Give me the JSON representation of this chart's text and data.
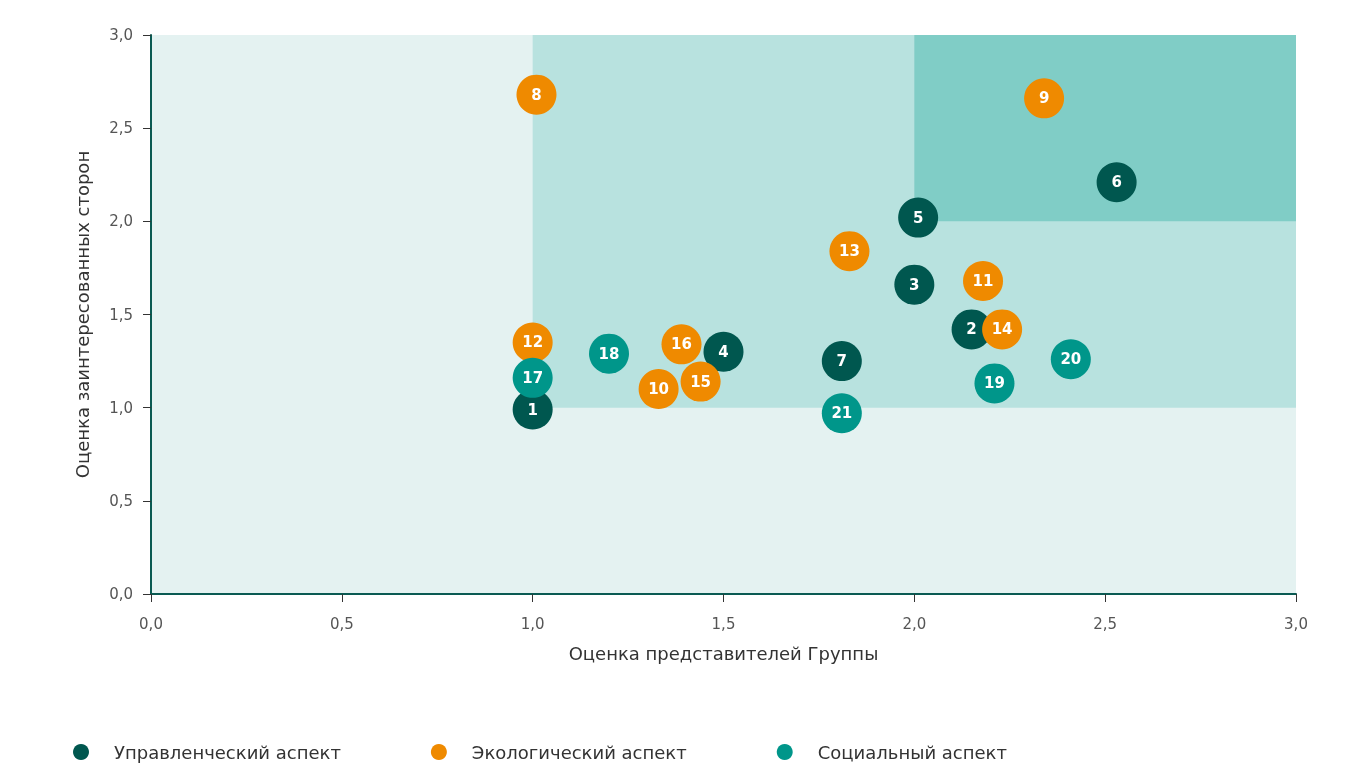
{
  "chart_data": {
    "type": "scatter",
    "xlabel": "Оценка представителей Группы",
    "ylabel": "Оценка заинтересованных сторон",
    "xlim": [
      0,
      3
    ],
    "ylim": [
      0,
      3
    ],
    "xticks": [
      {
        "value": 0,
        "label": "0,0"
      },
      {
        "value": 0.5,
        "label": "0,5"
      },
      {
        "value": 1,
        "label": "1,0"
      },
      {
        "value": 1.5,
        "label": "1,5"
      },
      {
        "value": 2,
        "label": "2,0"
      },
      {
        "value": 2.5,
        "label": "2,5"
      },
      {
        "value": 3,
        "label": "3,0"
      }
    ],
    "yticks": [
      {
        "value": 0,
        "label": "0,0"
      },
      {
        "value": 0.5,
        "label": "0,5"
      },
      {
        "value": 1,
        "label": "1,0"
      },
      {
        "value": 1.5,
        "label": "1,5"
      },
      {
        "value": 2,
        "label": "2,0"
      },
      {
        "value": 2.5,
        "label": "2,5"
      },
      {
        "value": 3,
        "label": "3,0"
      }
    ],
    "grid": false,
    "legend": "bottom left",
    "marker": "circle",
    "bands": [
      {
        "axis": "x",
        "from": 0,
        "to": 3,
        "color": "#e4f2f1"
      },
      {
        "axis": "x",
        "from": 1,
        "to": 3,
        "color": "#b8e2df"
      },
      {
        "axis": "x",
        "from": 2,
        "to": 3,
        "color": "#80cdc6"
      }
    ],
    "series": [
      {
        "name": "Управленческий аспект",
        "color": "#00574f",
        "x": [
          1.0,
          2.15,
          2.0,
          1.5,
          2.01,
          2.53,
          1.81
        ],
        "values": [
          0.99,
          1.42,
          1.66,
          1.3,
          2.02,
          2.21,
          1.25
        ]
      },
      {
        "name": "Экологический аспект",
        "color": "#ef8a00",
        "x": [
          1.01,
          2.34,
          1.33,
          2.18,
          1.0,
          1.83,
          2.23,
          1.44,
          1.39
        ],
        "values": [
          2.68,
          2.66,
          1.1,
          1.68,
          1.35,
          1.84,
          1.42,
          1.14,
          1.34
        ]
      },
      {
        "name": "Социальный аспект",
        "color": "#00968a",
        "x": [
          1.0,
          1.2,
          2.21,
          2.41,
          1.81
        ],
        "values": [
          1.16,
          1.29,
          1.13,
          1.26,
          0.97
        ]
      }
    ],
    "annotations": [
      {
        "text": "1",
        "x": 1.0,
        "y": 0.99
      },
      {
        "text": "2",
        "x": 2.15,
        "y": 1.42
      },
      {
        "text": "3",
        "x": 2.0,
        "y": 1.66
      },
      {
        "text": "4",
        "x": 1.5,
        "y": 1.3
      },
      {
        "text": "5",
        "x": 2.01,
        "y": 2.02
      },
      {
        "text": "6",
        "x": 2.53,
        "y": 2.21
      },
      {
        "text": "7",
        "x": 1.81,
        "y": 1.25
      },
      {
        "text": "8",
        "x": 1.01,
        "y": 2.68
      },
      {
        "text": "9",
        "x": 2.34,
        "y": 2.66
      },
      {
        "text": "10",
        "x": 1.33,
        "y": 1.1
      },
      {
        "text": "11",
        "x": 2.18,
        "y": 1.68
      },
      {
        "text": "12",
        "x": 1.0,
        "y": 1.35
      },
      {
        "text": "13",
        "x": 1.83,
        "y": 1.84
      },
      {
        "text": "14",
        "x": 2.23,
        "y": 1.42
      },
      {
        "text": "15",
        "x": 1.44,
        "y": 1.14
      },
      {
        "text": "16",
        "x": 1.39,
        "y": 1.34
      },
      {
        "text": "17",
        "x": 1.0,
        "y": 1.16
      },
      {
        "text": "18",
        "x": 1.2,
        "y": 1.29
      },
      {
        "text": "19",
        "x": 2.21,
        "y": 1.13
      },
      {
        "text": "20",
        "x": 2.41,
        "y": 1.26
      },
      {
        "text": "21",
        "x": 1.81,
        "y": 0.97
      }
    ]
  }
}
